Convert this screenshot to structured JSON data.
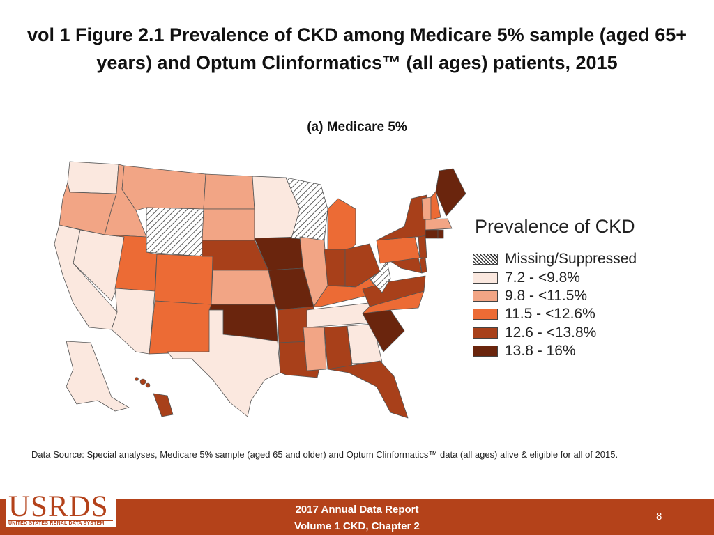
{
  "title": "vol 1 Figure 2.1 Prevalence of CKD among Medicare 5% sample (aged 65+ years) and Optum Clinformatics™ (all ages) patients, 2015",
  "subtitle": "(a) Medicare 5%",
  "legend": {
    "title": "Prevalence of CKD",
    "items": [
      {
        "label": "Missing/Suppressed",
        "color": "hatch"
      },
      {
        "label": "7.2 - <9.8%",
        "color": "#fbe8df"
      },
      {
        "label": "9.8 - <11.5%",
        "color": "#f2a585"
      },
      {
        "label": "11.5 - <12.6%",
        "color": "#ec6b35"
      },
      {
        "label": "12.6 - <13.8%",
        "color": "#a8401a"
      },
      {
        "label": "13.8 - 16%",
        "color": "#6a250d"
      }
    ]
  },
  "map_data": {
    "states": [
      {
        "name": "WA",
        "class": 1
      },
      {
        "name": "OR",
        "class": 2
      },
      {
        "name": "CA",
        "class": 1
      },
      {
        "name": "NV",
        "class": 1
      },
      {
        "name": "ID",
        "class": 2
      },
      {
        "name": "MT",
        "class": 2
      },
      {
        "name": "WY",
        "class": 0
      },
      {
        "name": "UT",
        "class": 3
      },
      {
        "name": "AZ",
        "class": 1
      },
      {
        "name": "CO",
        "class": 3
      },
      {
        "name": "NM",
        "class": 3
      },
      {
        "name": "ND",
        "class": 2
      },
      {
        "name": "SD",
        "class": 2
      },
      {
        "name": "NE",
        "class": 4
      },
      {
        "name": "KS",
        "class": 2
      },
      {
        "name": "OK",
        "class": 5
      },
      {
        "name": "TX",
        "class": 1
      },
      {
        "name": "MN",
        "class": 1
      },
      {
        "name": "IA",
        "class": 5
      },
      {
        "name": "MO",
        "class": 5
      },
      {
        "name": "AR",
        "class": 4
      },
      {
        "name": "LA",
        "class": 4
      },
      {
        "name": "WI",
        "class": 0
      },
      {
        "name": "IL",
        "class": 2
      },
      {
        "name": "MI",
        "class": 3
      },
      {
        "name": "IN",
        "class": 4
      },
      {
        "name": "OH",
        "class": 4
      },
      {
        "name": "KY",
        "class": 3
      },
      {
        "name": "TN",
        "class": 1
      },
      {
        "name": "MS",
        "class": 2
      },
      {
        "name": "AL",
        "class": 4
      },
      {
        "name": "GA",
        "class": 1
      },
      {
        "name": "FL",
        "class": 4
      },
      {
        "name": "SC",
        "class": 5
      },
      {
        "name": "NC",
        "class": 3
      },
      {
        "name": "VA",
        "class": 4
      },
      {
        "name": "WV",
        "class": 0
      },
      {
        "name": "MD",
        "class": 4
      },
      {
        "name": "DE",
        "class": 4
      },
      {
        "name": "PA",
        "class": 3
      },
      {
        "name": "NJ",
        "class": 4
      },
      {
        "name": "NY",
        "class": 4
      },
      {
        "name": "CT",
        "class": 5
      },
      {
        "name": "RI",
        "class": 5
      },
      {
        "name": "MA",
        "class": 2
      },
      {
        "name": "VT",
        "class": 2
      },
      {
        "name": "NH",
        "class": 3
      },
      {
        "name": "ME",
        "class": 5
      },
      {
        "name": "AK",
        "class": 1
      },
      {
        "name": "HI",
        "class": 4
      }
    ]
  },
  "source_note": "Data Source: Special analyses, Medicare 5% sample (aged 65 and older) and Optum Clinformatics™ data (all ages) alive & eligible for all of 2015.",
  "footer": {
    "logo_text": "USRDS",
    "logo_subtext": "UNITED STATES RENAL DATA SYSTEM",
    "report_line1": "2017 Annual Data Report",
    "report_line2": "Volume 1 CKD, Chapter 2",
    "page_number": "8"
  }
}
